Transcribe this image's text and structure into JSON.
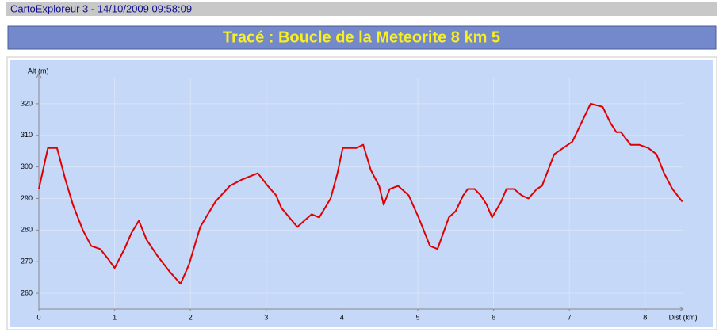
{
  "header": {
    "text": "CartoExploreur 3 - 14/10/2009 09:58:09"
  },
  "chart_data": {
    "type": "line",
    "title": "Tracé : Boucle de la Meteorite 8 km 5",
    "xlabel": "Dist (km)",
    "ylabel": "Alt (m)",
    "x": [
      0,
      0.12,
      0.24,
      0.35,
      0.45,
      0.58,
      0.69,
      0.81,
      0.91,
      1.0,
      1.13,
      1.22,
      1.32,
      1.42,
      1.56,
      1.72,
      1.87,
      1.98,
      2.13,
      2.33,
      2.52,
      2.68,
      2.89,
      3.02,
      3.13,
      3.2,
      3.41,
      3.6,
      3.7,
      3.85,
      3.94,
      4.01,
      4.19,
      4.28,
      4.38,
      4.49,
      4.55,
      4.63,
      4.74,
      4.88,
      5.01,
      5.16,
      5.26,
      5.41,
      5.5,
      5.6,
      5.66,
      5.75,
      5.83,
      5.91,
      5.98,
      6.1,
      6.17,
      6.27,
      6.37,
      6.46,
      6.57,
      6.64,
      6.8,
      7.04,
      7.28,
      7.44,
      7.54,
      7.62,
      7.68,
      7.81,
      7.92,
      8.04,
      8.15,
      8.25,
      8.36,
      8.49
    ],
    "series": [
      {
        "color": "#e00000",
        "values": [
          293,
          306,
          306,
          296,
          288,
          280,
          275,
          274,
          271,
          268,
          274,
          279,
          283,
          277,
          272,
          267,
          263,
          269,
          281,
          289,
          294,
          296,
          298,
          294,
          291,
          287,
          281,
          285,
          284,
          290,
          298,
          306,
          306,
          307,
          299,
          294,
          288,
          293,
          294,
          291,
          284,
          275,
          274,
          284,
          286,
          291,
          293,
          293,
          291,
          288,
          284,
          289,
          293,
          293,
          291,
          290,
          293,
          294,
          304,
          308,
          320,
          319,
          314,
          311,
          311,
          307,
          307,
          306,
          304,
          298,
          293,
          289
        ]
      }
    ],
    "xlim": [
      0,
      8.5
    ],
    "ylim": [
      255,
      328
    ],
    "xticks": [
      0,
      1,
      2,
      3,
      4,
      5,
      6,
      7,
      8
    ],
    "yticks": [
      260,
      270,
      280,
      290,
      300,
      310,
      320
    ],
    "grid": true
  }
}
